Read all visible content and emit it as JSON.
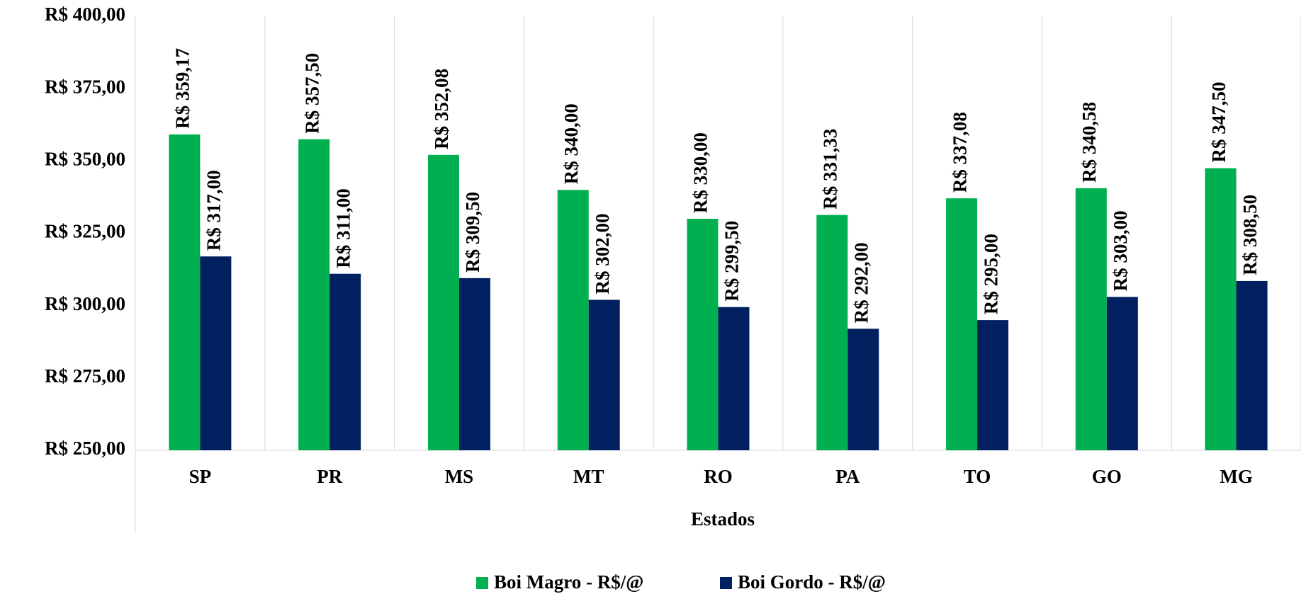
{
  "chart_data": {
    "type": "bar",
    "x_label": "Estados",
    "categories": [
      "SP",
      "PR",
      "MS",
      "MT",
      "RO",
      "PA",
      "TO",
      "GO",
      "MG"
    ],
    "series": [
      {
        "name": "Boi Magro - R$/@",
        "color": "#00b050",
        "values": [
          359.17,
          357.5,
          352.08,
          340,
          330,
          331.33,
          337.08,
          340.58,
          347.5
        ],
        "value_labels": [
          "R$ 359,17",
          "R$ 357,50",
          "R$ 352,08",
          "R$ 340,00",
          "R$ 330,00",
          "R$ 331,33",
          "R$ 337,08",
          "R$ 340,58",
          "R$ 347,50"
        ]
      },
      {
        "name": "Boi Gordo - R$/@",
        "color": "#002060",
        "values": [
          317,
          311,
          309.5,
          302,
          299.5,
          292,
          295,
          303,
          308.5
        ],
        "value_labels": [
          "R$ 317,00",
          "R$ 311,00",
          "R$ 309,50",
          "R$ 302,00",
          "R$ 299,50",
          "R$ 292,00",
          "R$ 295,00",
          "R$ 303,00",
          "R$ 308,50"
        ]
      }
    ],
    "ylim": [
      250,
      400
    ],
    "yticks": [
      {
        "value": 250,
        "label": "R$ 250,00"
      },
      {
        "value": 275,
        "label": "R$ 275,00"
      },
      {
        "value": 300,
        "label": "R$ 300,00"
      },
      {
        "value": 325,
        "label": "R$ 325,00"
      },
      {
        "value": 350,
        "label": "R$ 350,00"
      },
      {
        "value": 375,
        "label": "R$ 375,00"
      },
      {
        "value": 400,
        "label": "R$ 400,00"
      }
    ],
    "legend": "bottom"
  }
}
